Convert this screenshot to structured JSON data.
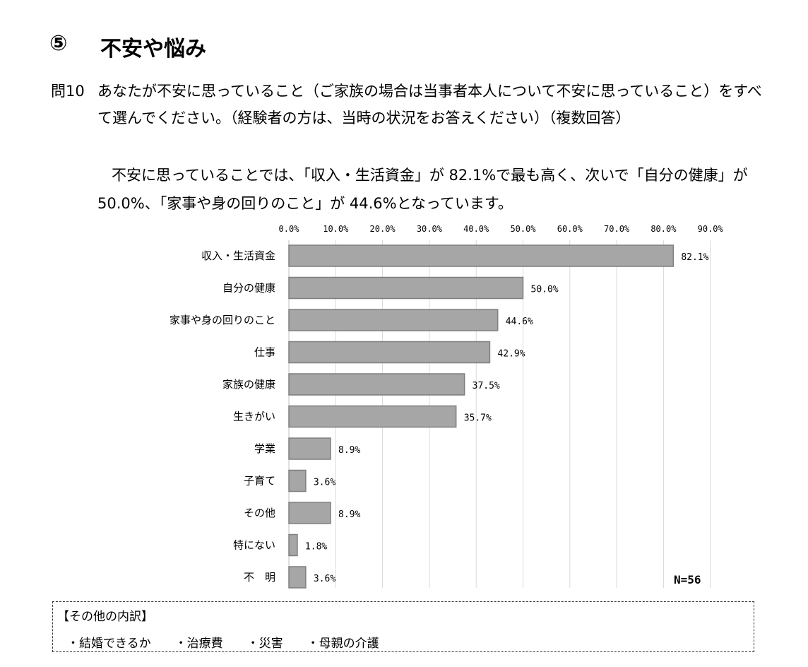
{
  "section": {
    "number": "⑤",
    "title": "不安や悩み"
  },
  "question": {
    "number": "問10",
    "text": "あなたが不安に思っていること（ご家族の場合は当事者本人について不安に思っていること）をすべて選んでください。（経験者の方は、当時の状況をお答えください）（複数回答）"
  },
  "summary": "不安に思っていることでは、「収入・生活資金」が 82.1%で最も高く、次いで「自分の健康」が 50.0%、「家事や身の回りのこと」が 44.6%となっています。",
  "chart_data": {
    "type": "bar",
    "orientation": "horizontal",
    "categories": [
      "収入・生活資金",
      "自分の健康",
      "家事や身の回りのこと",
      "仕事",
      "家族の健康",
      "生きがい",
      "学業",
      "子育て",
      "その他",
      "特にない",
      "不　明"
    ],
    "values": [
      82.1,
      50.0,
      44.6,
      42.9,
      37.5,
      35.7,
      8.9,
      3.6,
      8.9,
      1.8,
      3.6
    ],
    "value_labels": [
      "82.1%",
      "50.0%",
      "44.6%",
      "42.9%",
      "37.5%",
      "35.7%",
      "8.9%",
      "3.6%",
      "8.9%",
      "1.8%",
      "3.6%"
    ],
    "xticks": [
      "0.0%",
      "10.0%",
      "20.0%",
      "30.0%",
      "40.0%",
      "50.0%",
      "60.0%",
      "70.0%",
      "80.0%",
      "90.0%"
    ],
    "xlim": [
      0,
      90
    ],
    "axis_position": "top",
    "grid": true,
    "bar_color": "#a6a6a6",
    "note": "N=56"
  },
  "other": {
    "title": "【その他の内訳】",
    "items": [
      "・結婚できるか",
      "・治療費",
      "・災害",
      "・母親の介護"
    ]
  }
}
